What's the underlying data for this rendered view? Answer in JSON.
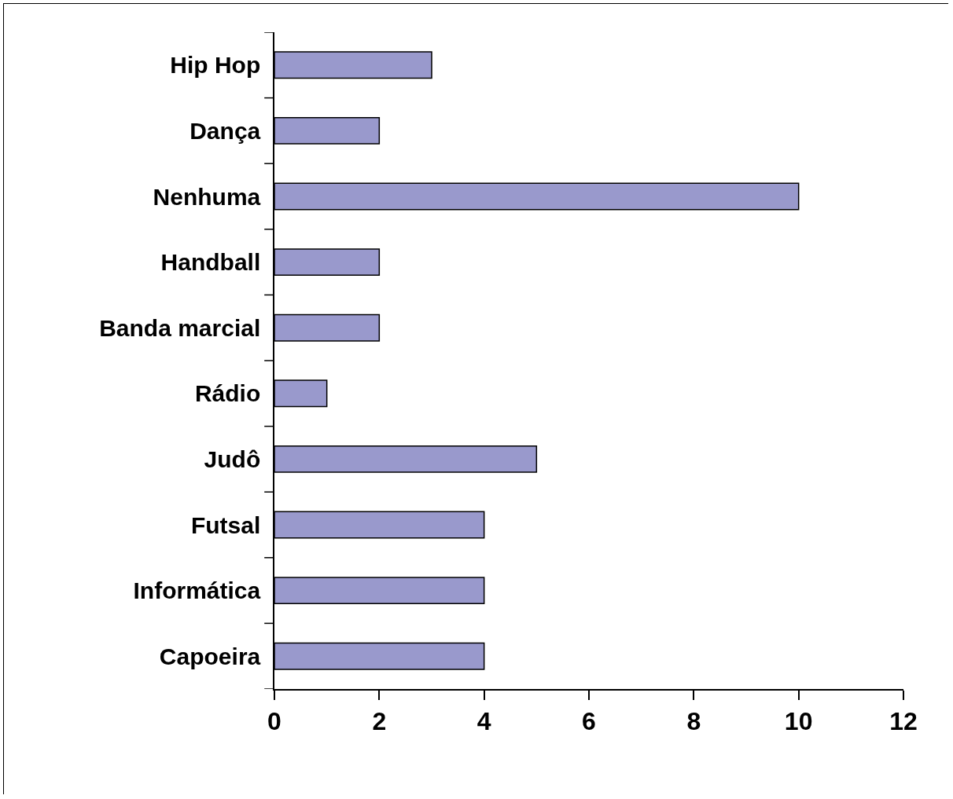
{
  "chart_data": {
    "type": "bar",
    "orientation": "horizontal",
    "categories": [
      "Hip Hop",
      "Dança",
      "Nenhuma",
      "Handball",
      "Banda marcial",
      "Rádio",
      "Judô",
      "Futsal",
      "Informática",
      "Capoeira"
    ],
    "values": [
      3,
      2,
      10,
      2,
      2,
      1,
      5,
      4,
      4,
      4
    ],
    "color": "#9999cc",
    "xlim": [
      0,
      12
    ],
    "xticks": [
      0,
      2,
      4,
      6,
      8,
      10,
      12
    ],
    "grid": false
  }
}
